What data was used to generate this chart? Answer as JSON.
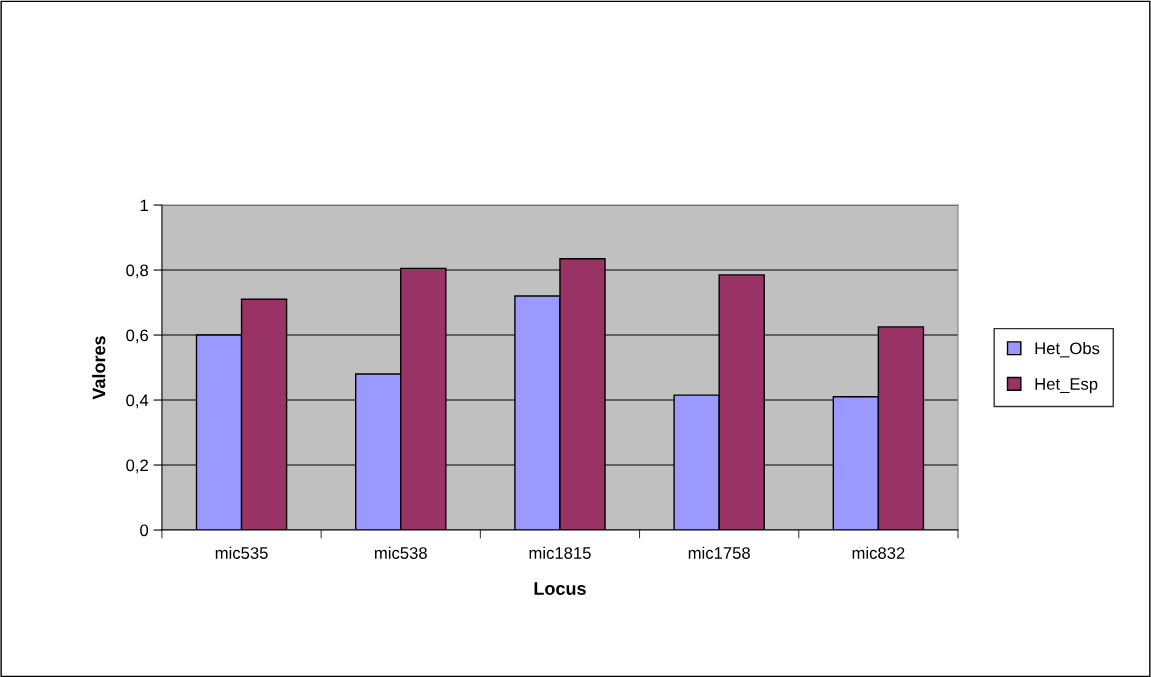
{
  "chart_data": {
    "type": "bar",
    "xlabel": "Locus",
    "ylabel": "Valores",
    "categories": [
      "mic535",
      "mic538",
      "mic1815",
      "mic1758",
      "mic832"
    ],
    "series": [
      {
        "name": "Het_Obs",
        "color": "#9999ff",
        "values": [
          0.6,
          0.48,
          0.72,
          0.415,
          0.41
        ]
      },
      {
        "name": "Het_Esp",
        "color": "#993366",
        "values": [
          0.71,
          0.805,
          0.835,
          0.785,
          0.625
        ]
      }
    ],
    "ylim": [
      0,
      1
    ],
    "yticks": [
      0,
      {
        "value": 0.2,
        "label": "0,2"
      },
      {
        "value": 0.4,
        "label": "0,4"
      },
      {
        "value": 0.6,
        "label": "0,6"
      },
      {
        "value": 0.8,
        "label": "0,8"
      },
      1
    ],
    "grid": "y",
    "legend": "right"
  }
}
